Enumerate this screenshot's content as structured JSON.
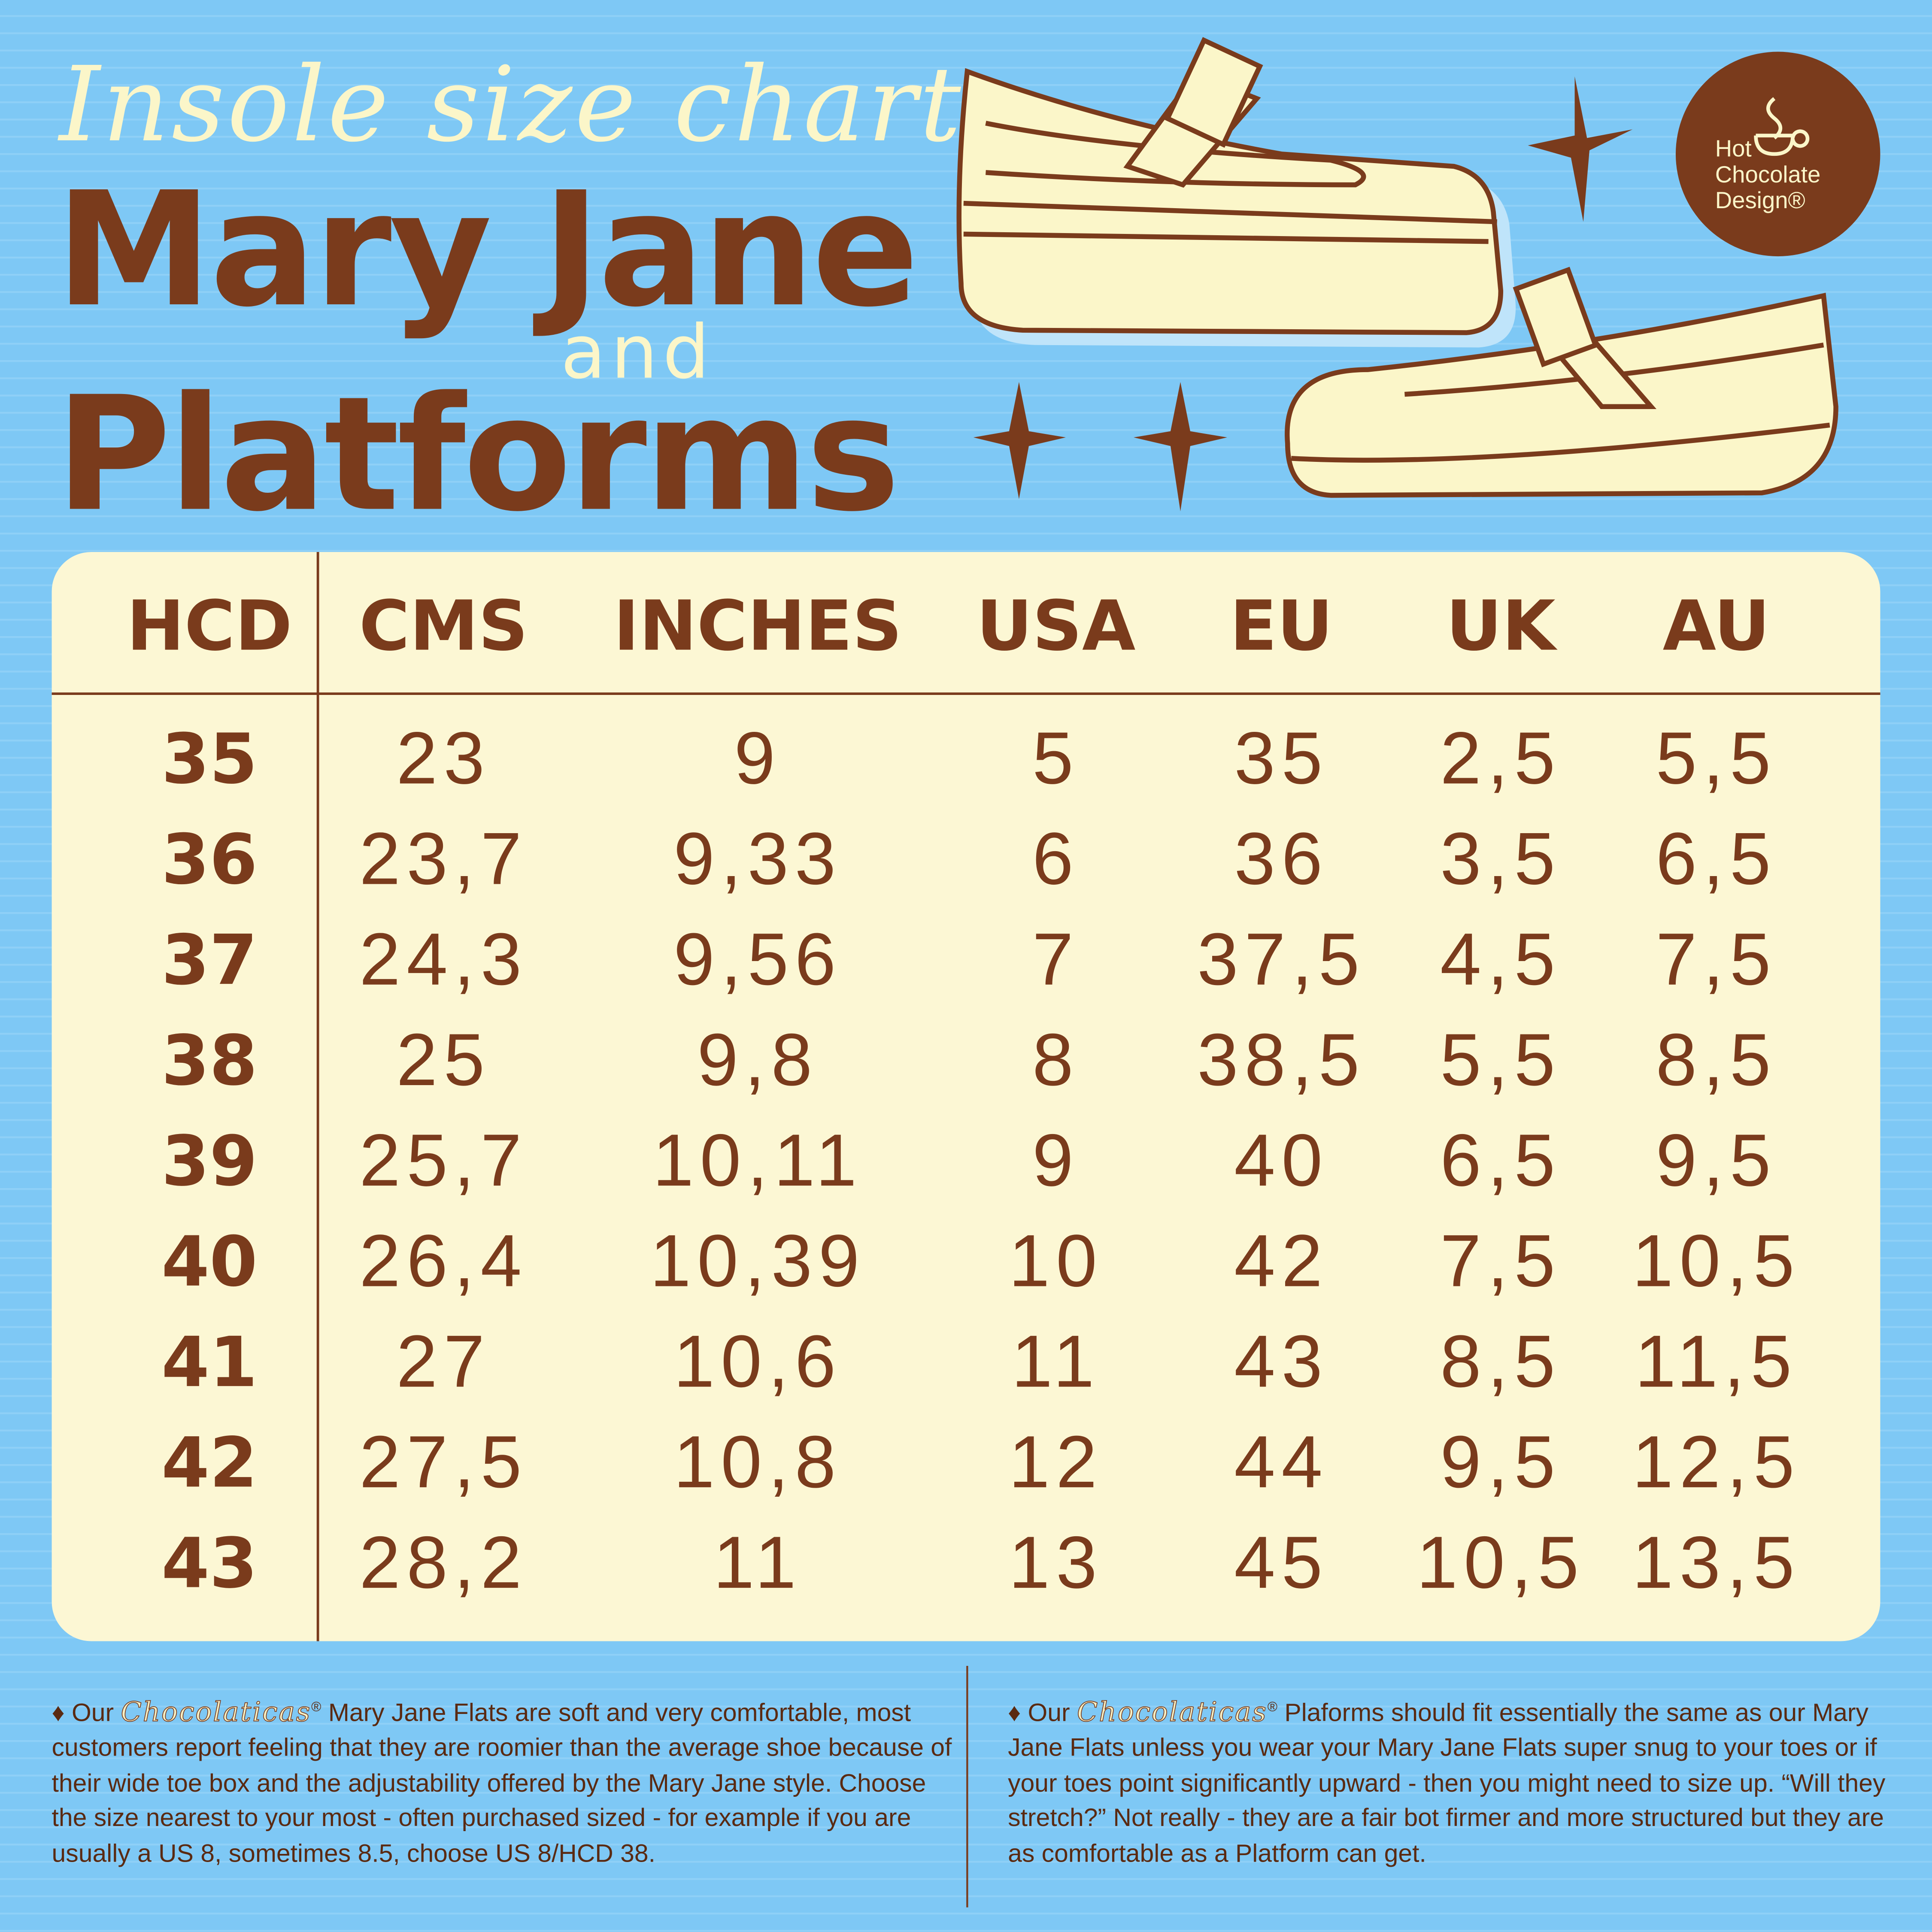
{
  "header": {
    "script_title": "Insole size chart",
    "title_line_1": "Mary Jane",
    "connector": "and",
    "title_line_2": "Platforms"
  },
  "logo": {
    "lines": [
      "Hot",
      "Chocolate",
      "Design®"
    ]
  },
  "table": {
    "columns": [
      "HCD",
      "CMS",
      "INCHES",
      "USA",
      "EU",
      "UK",
      "AU"
    ],
    "rows": [
      [
        "35",
        "23",
        "9",
        "5",
        "35",
        "2,5",
        "5,5"
      ],
      [
        "36",
        "23,7",
        "9,33",
        "6",
        "36",
        "3,5",
        "6,5"
      ],
      [
        "37",
        "24,3",
        "9,56",
        "7",
        "37,5",
        "4,5",
        "7,5"
      ],
      [
        "38",
        "25",
        "9,8",
        "8",
        "38,5",
        "5,5",
        "8,5"
      ],
      [
        "39",
        "25,7",
        "10,11",
        "9",
        "40",
        "6,5",
        "9,5"
      ],
      [
        "40",
        "26,4",
        "10,39",
        "10",
        "42",
        "7,5",
        "10,5"
      ],
      [
        "41",
        "27",
        "10,6",
        "11",
        "43",
        "8,5",
        "11,5"
      ],
      [
        "42",
        "27,5",
        "10,8",
        "12",
        "44",
        "9,5",
        "12,5"
      ],
      [
        "43",
        "28,2",
        "11",
        "13",
        "45",
        "10,5",
        "13,5"
      ]
    ]
  },
  "notes": [
    {
      "lead": "♦ Our",
      "brand": "Chocolaticas",
      "trademark": "®",
      "body": "Mary Jane Flats are soft and very comfortable, most customers report feeling that they are roomier than the average shoe because of their wide toe box and the adjustability offered by the Mary Jane style. Choose the size nearest to your most - often purchased sized - for example if you are usually a US 8, sometimes 8.5, choose US 8/HCD 38."
    },
    {
      "lead": "♦ Our",
      "brand": "Chocolaticas",
      "trademark": "®",
      "body": "Plaforms should fit essentially the same as our Mary Jane Flats unless you wear your Mary Jane Flats super snug to your toes or if your toes point significantly upward - then you might need to size  up. “Will they stretch?” Not really - they are a fair bot firmer and more structured but they are as comfortable as a Platform can get."
    }
  ]
}
